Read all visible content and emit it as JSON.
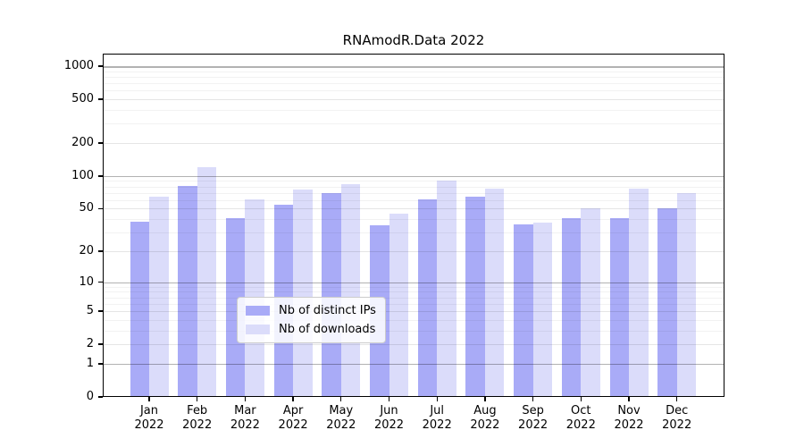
{
  "chart_data": {
    "type": "bar",
    "title": "RNAmodR.Data 2022",
    "categories": [
      "Jan 2022",
      "Feb 2022",
      "Mar 2022",
      "Apr 2022",
      "May 2022",
      "Jun 2022",
      "Jul 2022",
      "Aug 2022",
      "Sep 2022",
      "Oct 2022",
      "Nov 2022",
      "Dec 2022"
    ],
    "series": [
      {
        "name": "Nb of distinct IPs",
        "color": "#a9abf7",
        "values": [
          38,
          81,
          41,
          54,
          70,
          35,
          61,
          65,
          36,
          41,
          41,
          50
        ]
      },
      {
        "name": "Nb of downloads",
        "color": "#dbdcfa",
        "values": [
          65,
          120,
          61,
          75,
          84,
          45,
          91,
          77,
          37,
          50,
          76,
          70
        ]
      }
    ],
    "y_axis": {
      "scale": "log10(value+1)",
      "ticks": [
        0,
        1,
        2,
        5,
        10,
        20,
        50,
        100,
        200,
        500,
        1000
      ],
      "major_gridlines": [
        1,
        10,
        100,
        1000
      ],
      "mid_gridlines": [
        2,
        5,
        20,
        50,
        200,
        500
      ],
      "minor_gridlines": [
        3,
        4,
        6,
        7,
        8,
        9,
        30,
        40,
        60,
        70,
        80,
        90,
        300,
        400,
        600,
        700,
        800,
        900
      ],
      "ylim": [
        0,
        1300
      ]
    },
    "legend": {
      "position": "lower-center-inside",
      "entries": [
        "Nb of distinct IPs",
        "Nb of downloads"
      ]
    },
    "grid": true,
    "xlabel": "",
    "ylabel": ""
  }
}
